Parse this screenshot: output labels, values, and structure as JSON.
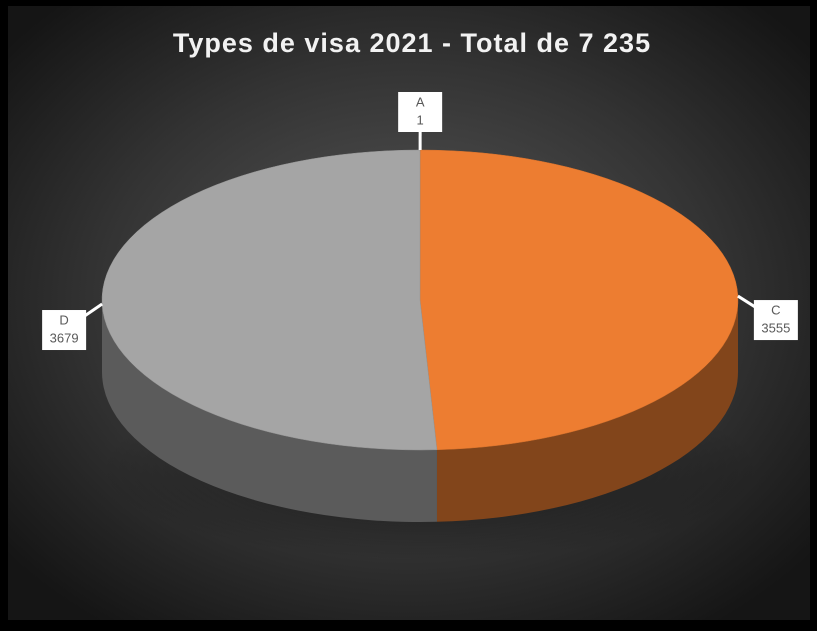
{
  "chart_data": {
    "type": "pie",
    "title": "Types de visa 2021 - Total de 7 235",
    "categories": [
      "A",
      "C",
      "D"
    ],
    "values": [
      1,
      3555,
      3679
    ],
    "colors": [
      "#4472c4",
      "#ed7d31",
      "#a5a5a5"
    ]
  }
}
